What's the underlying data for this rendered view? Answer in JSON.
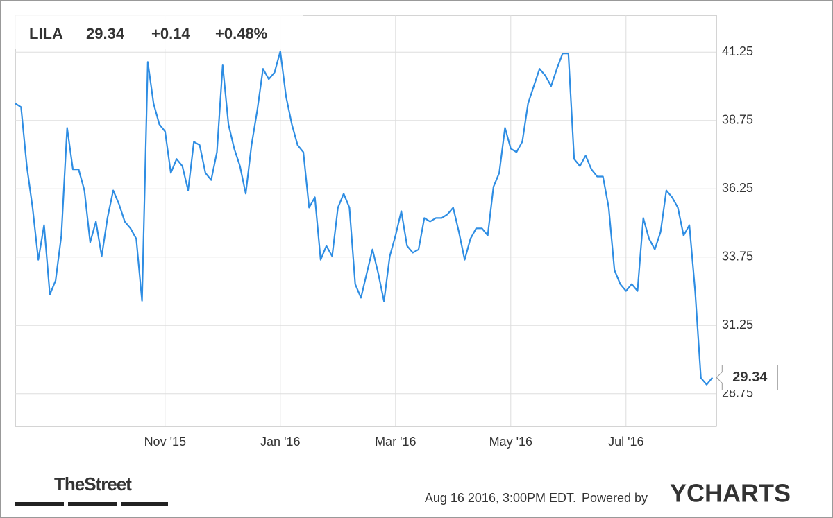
{
  "chart_data": {
    "type": "line",
    "ticker": "LILA",
    "price": "29.34",
    "change": "+0.14",
    "change_percent": "+0.48%",
    "categories": [
      null,
      null,
      null,
      null,
      null,
      null,
      null,
      null,
      null,
      null,
      null,
      null,
      null,
      null,
      null,
      null,
      null,
      null,
      null,
      null,
      null,
      null,
      null,
      null,
      null,
      null,
      "Nov '15",
      null,
      null,
      null,
      null,
      null,
      null,
      null,
      null,
      null,
      null,
      null,
      null,
      null,
      null,
      null,
      null,
      null,
      null,
      null,
      "Jan '16",
      null,
      null,
      null,
      null,
      null,
      null,
      null,
      null,
      null,
      null,
      null,
      null,
      null,
      null,
      null,
      null,
      null,
      null,
      null,
      "Mar '16",
      null,
      null,
      null,
      null,
      null,
      null,
      null,
      null,
      null,
      null,
      null,
      null,
      null,
      null,
      null,
      null,
      null,
      null,
      null,
      "May '16",
      null,
      null,
      null,
      null,
      null,
      null,
      null,
      null,
      null,
      null,
      null,
      null,
      null,
      null,
      null,
      null,
      null,
      null,
      null,
      "Jul '16",
      null,
      null,
      null,
      null,
      null,
      null,
      null,
      null,
      null,
      null,
      null,
      null,
      null,
      null,
      null
    ],
    "values": [
      39.37,
      39.24,
      37.08,
      35.56,
      33.65,
      34.92,
      32.38,
      32.89,
      34.54,
      38.48,
      36.96,
      36.96,
      36.19,
      34.29,
      35.05,
      33.78,
      35.18,
      36.19,
      35.69,
      35.05,
      34.8,
      34.42,
      32.15,
      40.89,
      39.37,
      38.61,
      38.35,
      36.83,
      37.34,
      37.08,
      36.19,
      37.97,
      37.85,
      36.83,
      36.57,
      37.59,
      40.77,
      38.61,
      37.72,
      37.08,
      36.07,
      37.85,
      39.12,
      40.64,
      40.26,
      40.51,
      41.28,
      39.62,
      38.61,
      37.85,
      37.59,
      35.56,
      35.94,
      33.65,
      34.16,
      33.78,
      35.56,
      36.07,
      35.56,
      32.76,
      32.26,
      33.15,
      34.03,
      33.15,
      32.13,
      33.78,
      34.54,
      35.43,
      34.16,
      33.91,
      34.03,
      35.18,
      35.05,
      35.18,
      35.18,
      35.31,
      35.56,
      34.67,
      33.65,
      34.42,
      34.8,
      34.8,
      34.54,
      36.32,
      36.83,
      38.48,
      37.72,
      37.59,
      37.97,
      39.37,
      40.01,
      40.64,
      40.39,
      40.01,
      40.64,
      41.2,
      41.2,
      37.34,
      37.08,
      37.46,
      36.96,
      36.7,
      36.7,
      35.56,
      33.27,
      32.76,
      32.51,
      32.76,
      32.51,
      35.18,
      34.42,
      34.03,
      34.67,
      36.19,
      35.94,
      35.56,
      34.54,
      34.92,
      32.51,
      29.33,
      29.08,
      29.34
    ],
    "color": "#2e8de3",
    "change_color": "#1a9a1a",
    "ylim": [
      27.55,
      42.6
    ],
    "yticks": [
      28.75,
      31.25,
      33.75,
      36.25,
      38.75,
      41.25
    ],
    "grid": true
  },
  "footer": {
    "source_logo": "TheStreet",
    "timestamp": "Aug 16 2016, 3:00PM EDT.",
    "powered_by": "Powered by",
    "brand": "YCHARTS"
  }
}
